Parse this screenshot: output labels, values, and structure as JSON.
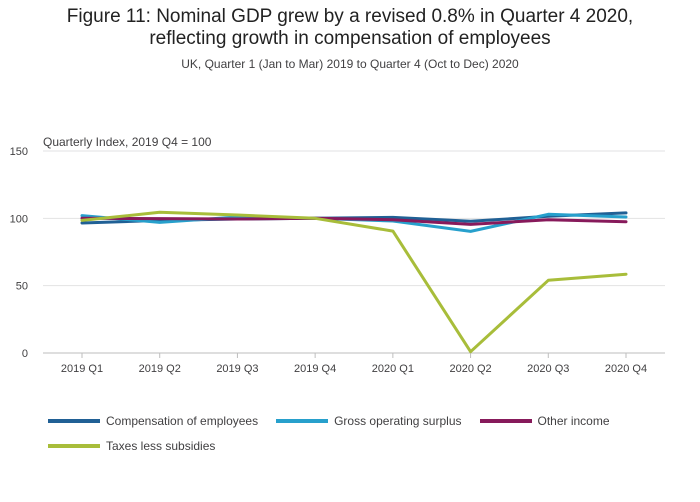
{
  "chart_data": {
    "type": "line",
    "title_line1": "Figure 11: Nominal GDP grew by a revised 0.8% in Quarter 4 2020,",
    "title_line2": "reflecting growth in compensation of employees",
    "subtitle": "UK, Quarter 1 (Jan to Mar) 2019 to Quarter 4 (Oct to Dec) 2020",
    "ylabel": "Quarterly Index, 2019 Q4 = 100",
    "xlabel": "",
    "ylim": [
      0,
      150
    ],
    "yticks": [
      0,
      50,
      100,
      150
    ],
    "grid": true,
    "legend_position": "bottom",
    "categories": [
      "2019 Q1",
      "2019 Q2",
      "2019 Q3",
      "2019 Q4",
      "2020 Q1",
      "2020 Q2",
      "2020 Q3",
      "2020 Q4"
    ],
    "series": [
      {
        "name": "Compensation of employees",
        "color": "#206095",
        "values": [
          96.5,
          98.5,
          99.5,
          100,
          100.7,
          97.8,
          101.5,
          104.0
        ]
      },
      {
        "name": "Gross operating surplus",
        "color": "#27a0cc",
        "values": [
          102.0,
          97.0,
          101.0,
          100,
          98.0,
          90.3,
          103.0,
          101.0
        ]
      },
      {
        "name": "Other income",
        "color": "#871a5b",
        "values": [
          100.0,
          99.8,
          99.5,
          100,
          99.0,
          95.5,
          99.0,
          97.5
        ]
      },
      {
        "name": "Taxes less subsidies",
        "color": "#a8bd3a",
        "values": [
          98.5,
          104.5,
          102.5,
          100,
          90.5,
          1.0,
          54.0,
          58.5
        ]
      }
    ]
  }
}
